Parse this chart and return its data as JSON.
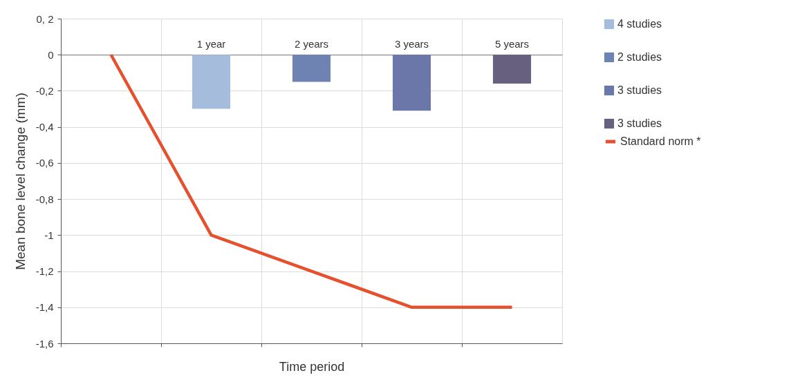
{
  "chart_data": {
    "type": "bar",
    "xlabel": "Time period",
    "ylabel": "Mean bone level change (mm)",
    "categories": [
      null,
      "1 year",
      "2 years",
      "3   years",
      "5   years"
    ],
    "series": [
      {
        "name": "4 studies",
        "color": "#a5bcdc",
        "values": [
          null,
          -0.3,
          null,
          null,
          null
        ]
      },
      {
        "name": "2 studies",
        "color": "#6f83b2",
        "values": [
          null,
          null,
          -0.15,
          null,
          null
        ]
      },
      {
        "name": "3 studies",
        "color": "#6a77a8",
        "values": [
          null,
          null,
          null,
          -0.31,
          null
        ]
      },
      {
        "name": "3 studies",
        "color": "#67607f",
        "values": [
          null,
          null,
          null,
          null,
          -0.16
        ]
      },
      {
        "name": "Standard norm *",
        "type": "line",
        "color": "#e5502e",
        "values": [
          0,
          -1,
          -1.2,
          -1.4,
          -1.4
        ]
      }
    ],
    "ylim": [
      -1.6,
      0.2
    ],
    "yticks": [
      {
        "value": 0.2,
        "label": "0, 2"
      },
      0,
      {
        "value": -0.2,
        "label": "-0,2"
      },
      {
        "value": -0.4,
        "label": "-0,4"
      },
      {
        "value": -0.6,
        "label": "-0,6"
      },
      {
        "value": -0.8,
        "label": "-0,8"
      },
      -1,
      {
        "value": -1.2,
        "label": "-1,2"
      },
      {
        "value": -1.4,
        "label": "-1,4"
      },
      {
        "value": -1.6,
        "label": "-1,6"
      }
    ],
    "grid": true,
    "legend": "right"
  }
}
